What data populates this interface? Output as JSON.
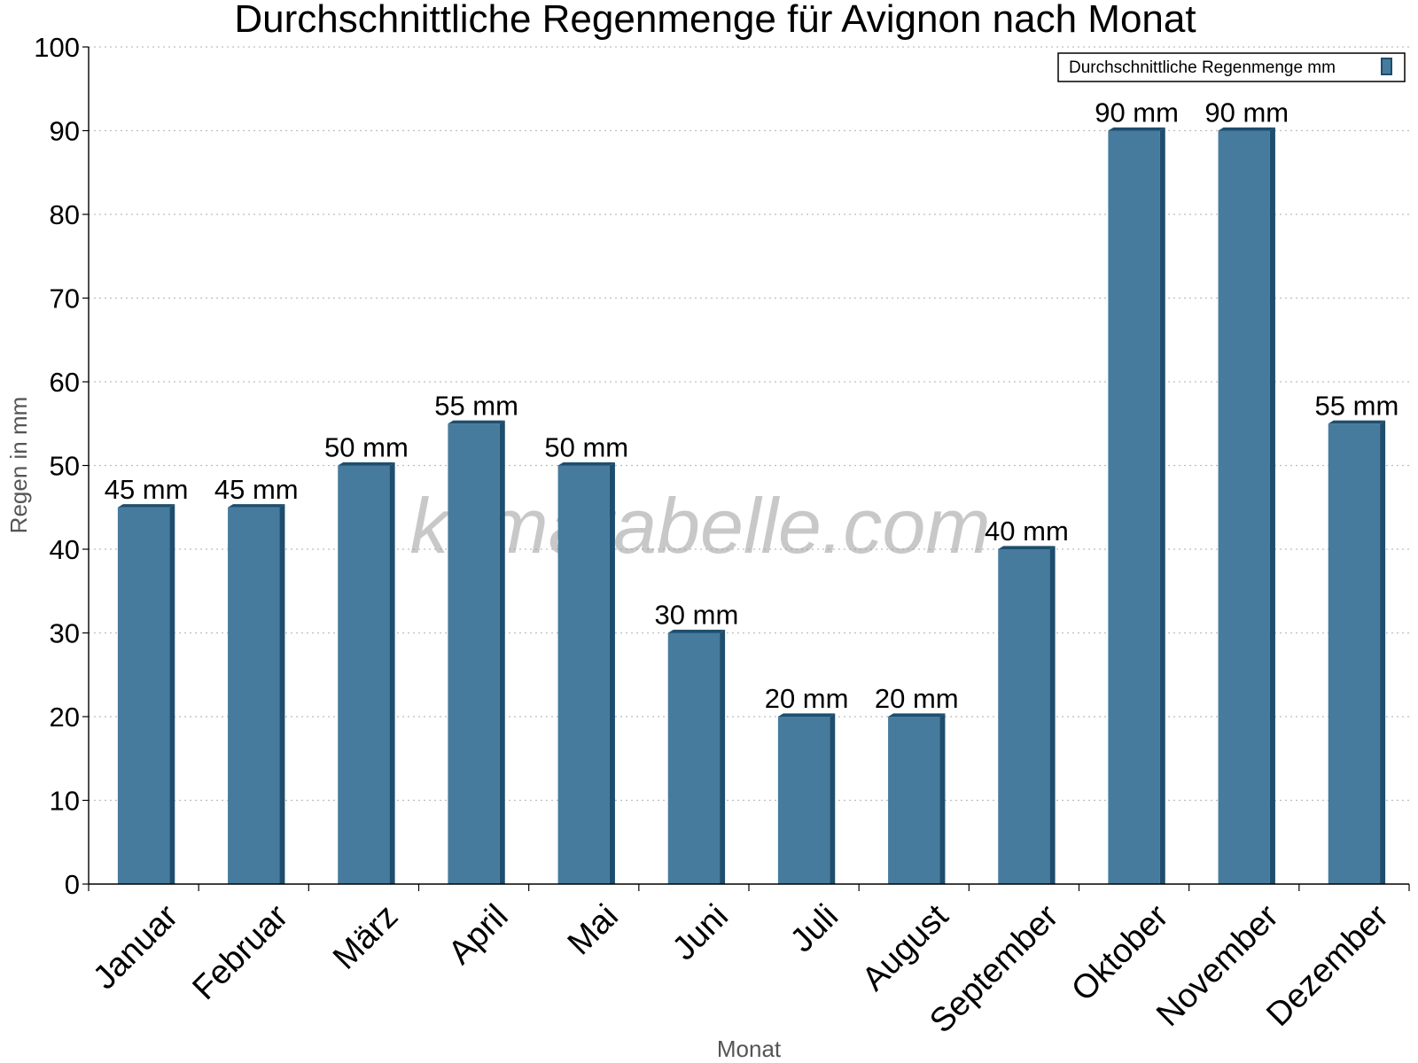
{
  "chart_data": {
    "type": "bar",
    "title": "Durchschnittliche Regenmenge für Avignon nach Monat",
    "xlabel": "Monat",
    "ylabel": "Regen in mm",
    "categories": [
      "Januar",
      "Februar",
      "März",
      "April",
      "Mai",
      "Juni",
      "Juli",
      "August",
      "September",
      "Oktober",
      "November",
      "Dezember"
    ],
    "series": [
      {
        "name": "Durchschnittliche Regenmenge mm",
        "values": [
          45,
          45,
          50,
          55,
          50,
          30,
          20,
          20,
          40,
          90,
          90,
          55
        ],
        "data_labels": [
          "45 mm",
          "45 mm",
          "50 mm",
          "55 mm",
          "50 mm",
          "30 mm",
          "20 mm",
          "20 mm",
          "40 mm",
          "90 mm",
          "90 mm",
          "55 mm"
        ]
      }
    ],
    "ylim": [
      0,
      100
    ],
    "yticks": [
      0,
      10,
      20,
      30,
      40,
      50,
      60,
      70,
      80,
      90,
      100
    ],
    "grid": true,
    "legend_position": "top-right",
    "bar_color": "#467b9d",
    "bar_side_color": "#1e4d6e",
    "watermark": "klimatabelle.com"
  }
}
